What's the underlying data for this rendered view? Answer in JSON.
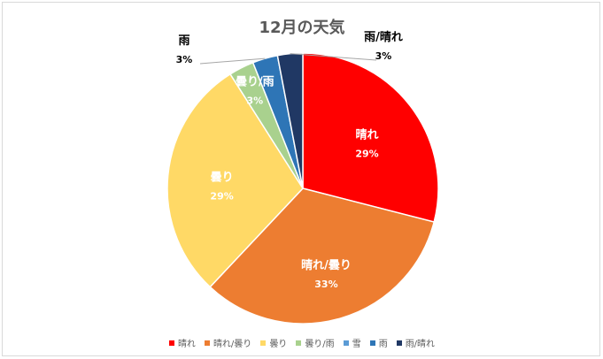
{
  "chart_data": {
    "type": "pie",
    "title": "12月の天気",
    "categories": [
      "晴れ",
      "晴れ/曇り",
      "曇り",
      "曇り/雨",
      "雪",
      "雨",
      "雨/晴れ"
    ],
    "values": [
      29,
      33,
      29,
      3,
      0,
      3,
      3
    ],
    "value_labels": [
      "29%",
      "33%",
      "29%",
      "3%",
      "",
      "3%",
      "3%"
    ],
    "colors": [
      "#ff0000",
      "#ed7d31",
      "#ffd966",
      "#a9d18e",
      "#5b9bd5",
      "#2e75b6",
      "#203864"
    ],
    "label_colors": [
      "#ffffff",
      "#ffffff",
      "#ffffff",
      "#ffffff",
      "#ffffff",
      "#000000",
      "#000000"
    ],
    "legend_position": "bottom"
  }
}
